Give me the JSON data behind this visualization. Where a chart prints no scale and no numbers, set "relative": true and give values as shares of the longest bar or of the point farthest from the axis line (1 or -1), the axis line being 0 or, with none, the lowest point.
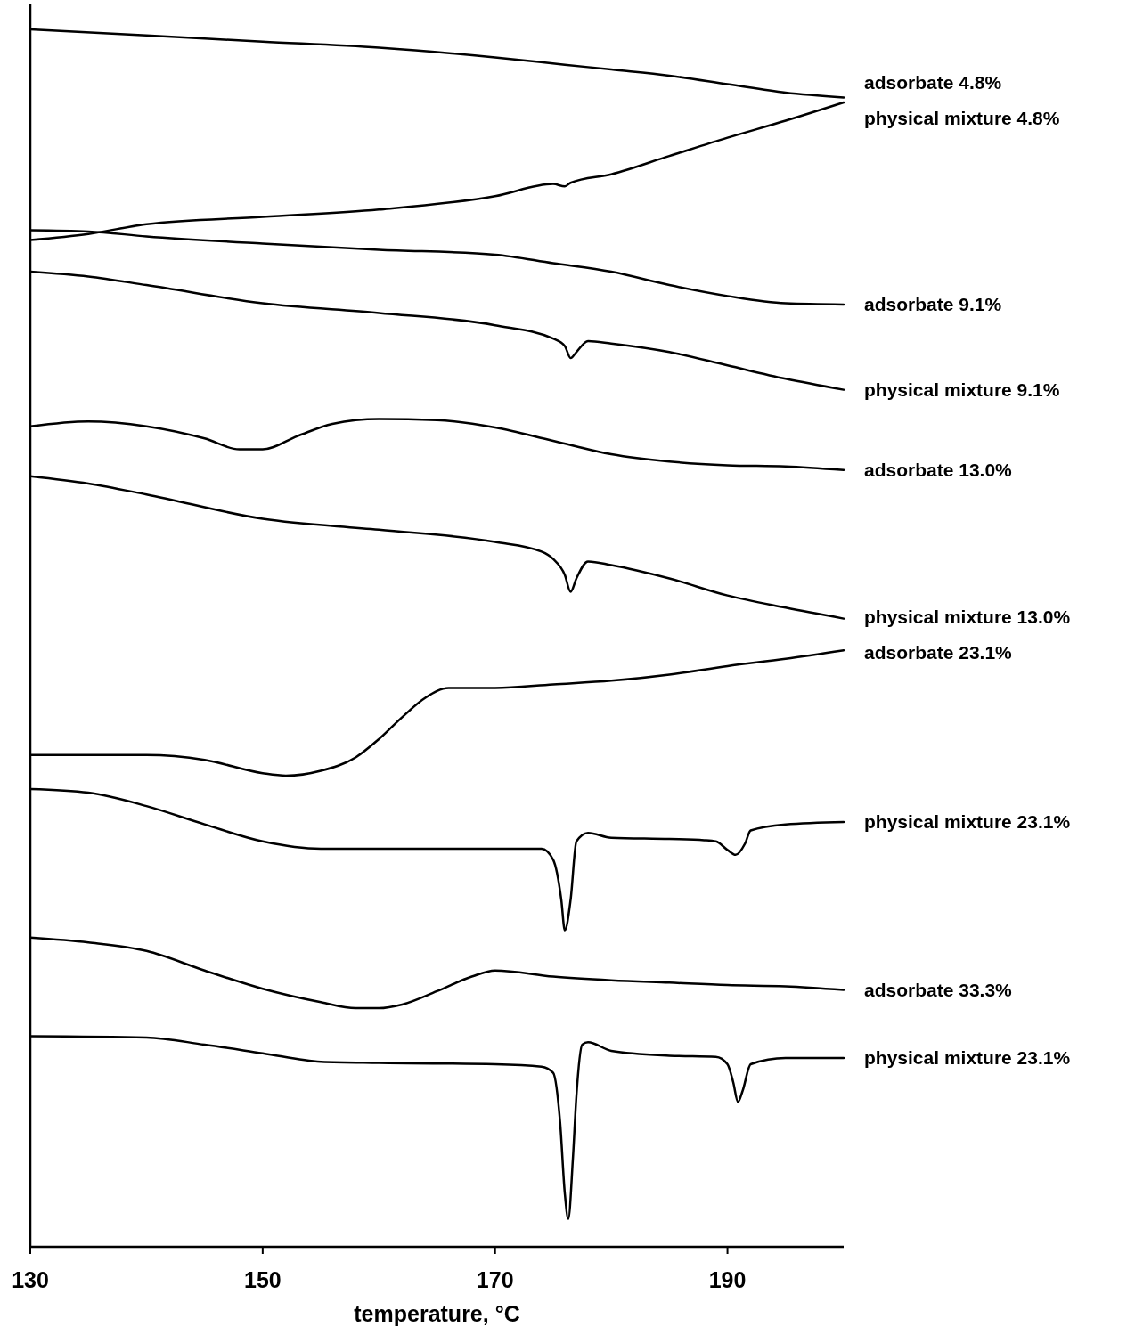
{
  "chart_data": {
    "type": "line",
    "relative": true,
    "xlabel": "temperature, °C",
    "xlim": [
      130,
      200
    ],
    "xticks": [
      130,
      150,
      170,
      190
    ],
    "marker": "none",
    "line_style": "solid",
    "series": [
      {
        "name": "adsorbate 4.8%",
        "color": "#000000",
        "x": [
          130,
          140,
          150,
          160,
          170,
          176,
          180,
          185,
          190,
          195,
          200
        ],
        "values": [
          1.0,
          0.995,
          0.99,
          0.985,
          0.977,
          0.971,
          0.967,
          0.962,
          0.955,
          0.948,
          0.944
        ]
      },
      {
        "name": "physical mixture 4.8%",
        "color": "#000000",
        "x": [
          130,
          135,
          140,
          150,
          160,
          170,
          175,
          176,
          176.5,
          180,
          185,
          190,
          195,
          200
        ],
        "values": [
          0.827,
          0.832,
          0.84,
          0.846,
          0.852,
          0.863,
          0.873,
          0.871,
          0.874,
          0.881,
          0.896,
          0.911,
          0.925,
          0.94
        ]
      },
      {
        "name": "adsorbate 9.1%",
        "color": "#000000",
        "x": [
          130,
          135,
          140,
          150,
          160,
          170,
          175,
          180,
          185,
          190,
          195,
          200
        ],
        "values": [
          0.835,
          0.834,
          0.83,
          0.824,
          0.819,
          0.815,
          0.808,
          0.801,
          0.79,
          0.781,
          0.775,
          0.774
        ]
      },
      {
        "name": "physical mixture 9.1%",
        "color": "#000000",
        "x": [
          130,
          135,
          140,
          150,
          160,
          170,
          175,
          176,
          176.5,
          177,
          178,
          180,
          185,
          190,
          195,
          200
        ],
        "values": [
          0.801,
          0.797,
          0.79,
          0.775,
          0.767,
          0.757,
          0.746,
          0.74,
          0.73,
          0.735,
          0.744,
          0.742,
          0.735,
          0.724,
          0.713,
          0.704
        ]
      },
      {
        "name": "adsorbate 13.0%",
        "color": "#000000",
        "x": [
          130,
          135,
          140,
          145,
          148,
          150,
          153,
          156,
          160,
          165,
          170,
          175,
          180,
          185,
          190,
          195,
          200
        ],
        "values": [
          0.674,
          0.678,
          0.674,
          0.664,
          0.655,
          0.655,
          0.666,
          0.676,
          0.68,
          0.679,
          0.673,
          0.662,
          0.651,
          0.645,
          0.642,
          0.641,
          0.638
        ]
      },
      {
        "name": "physical mixture 13.0%",
        "color": "#000000",
        "x": [
          130,
          135,
          140,
          150,
          160,
          170,
          174,
          175,
          176,
          176.5,
          177,
          178,
          180,
          185,
          190,
          195,
          200
        ],
        "values": [
          0.633,
          0.627,
          0.618,
          0.598,
          0.589,
          0.579,
          0.571,
          0.565,
          0.552,
          0.538,
          0.549,
          0.563,
          0.56,
          0.549,
          0.535,
          0.525,
          0.516
        ]
      },
      {
        "name": "adsorbate 23.1%",
        "color": "#000000",
        "x": [
          130,
          140,
          145,
          150,
          152,
          155,
          158,
          160,
          162,
          164,
          166,
          170,
          175,
          180,
          185,
          190,
          195,
          200
        ],
        "values": [
          0.404,
          0.404,
          0.4,
          0.389,
          0.387,
          0.391,
          0.402,
          0.417,
          0.435,
          0.451,
          0.459,
          0.459,
          0.462,
          0.465,
          0.47,
          0.477,
          0.483,
          0.49
        ]
      },
      {
        "name": "physical mixture 23.1%",
        "color": "#000000",
        "x": [
          130,
          135,
          140,
          145,
          150,
          155,
          160,
          170,
          174,
          175,
          175.7,
          176,
          176.5,
          177,
          178,
          180,
          185,
          188,
          189,
          190,
          190.7,
          191.5,
          192,
          195,
          200
        ],
        "values": [
          0.376,
          0.373,
          0.362,
          0.347,
          0.333,
          0.327,
          0.327,
          0.327,
          0.327,
          0.318,
          0.285,
          0.26,
          0.285,
          0.333,
          0.34,
          0.336,
          0.335,
          0.334,
          0.333,
          0.326,
          0.322,
          0.331,
          0.342,
          0.347,
          0.349
        ]
      },
      {
        "name": "adsorbate 33.3%",
        "color": "#000000",
        "x": [
          130,
          135,
          140,
          145,
          150,
          155,
          158,
          160,
          162,
          165,
          168,
          170,
          175,
          180,
          185,
          190,
          195,
          200
        ],
        "values": [
          0.254,
          0.25,
          0.243,
          0.227,
          0.212,
          0.201,
          0.196,
          0.196,
          0.199,
          0.21,
          0.222,
          0.227,
          0.222,
          0.219,
          0.217,
          0.215,
          0.214,
          0.211
        ]
      },
      {
        "name": "physical mixture 23.1%",
        "color": "#000000",
        "x": [
          130,
          140,
          145,
          150,
          155,
          160,
          170,
          174,
          175,
          175.6,
          176,
          176.3,
          176.7,
          177,
          177.5,
          178,
          180,
          185,
          189,
          190,
          190.5,
          190.9,
          191.3,
          192,
          195,
          200
        ],
        "values": [
          0.173,
          0.172,
          0.166,
          0.159,
          0.152,
          0.151,
          0.15,
          0.148,
          0.143,
          0.102,
          0.044,
          0.023,
          0.073,
          0.124,
          0.166,
          0.168,
          0.161,
          0.157,
          0.156,
          0.15,
          0.135,
          0.119,
          0.128,
          0.15,
          0.155,
          0.155
        ]
      }
    ]
  }
}
